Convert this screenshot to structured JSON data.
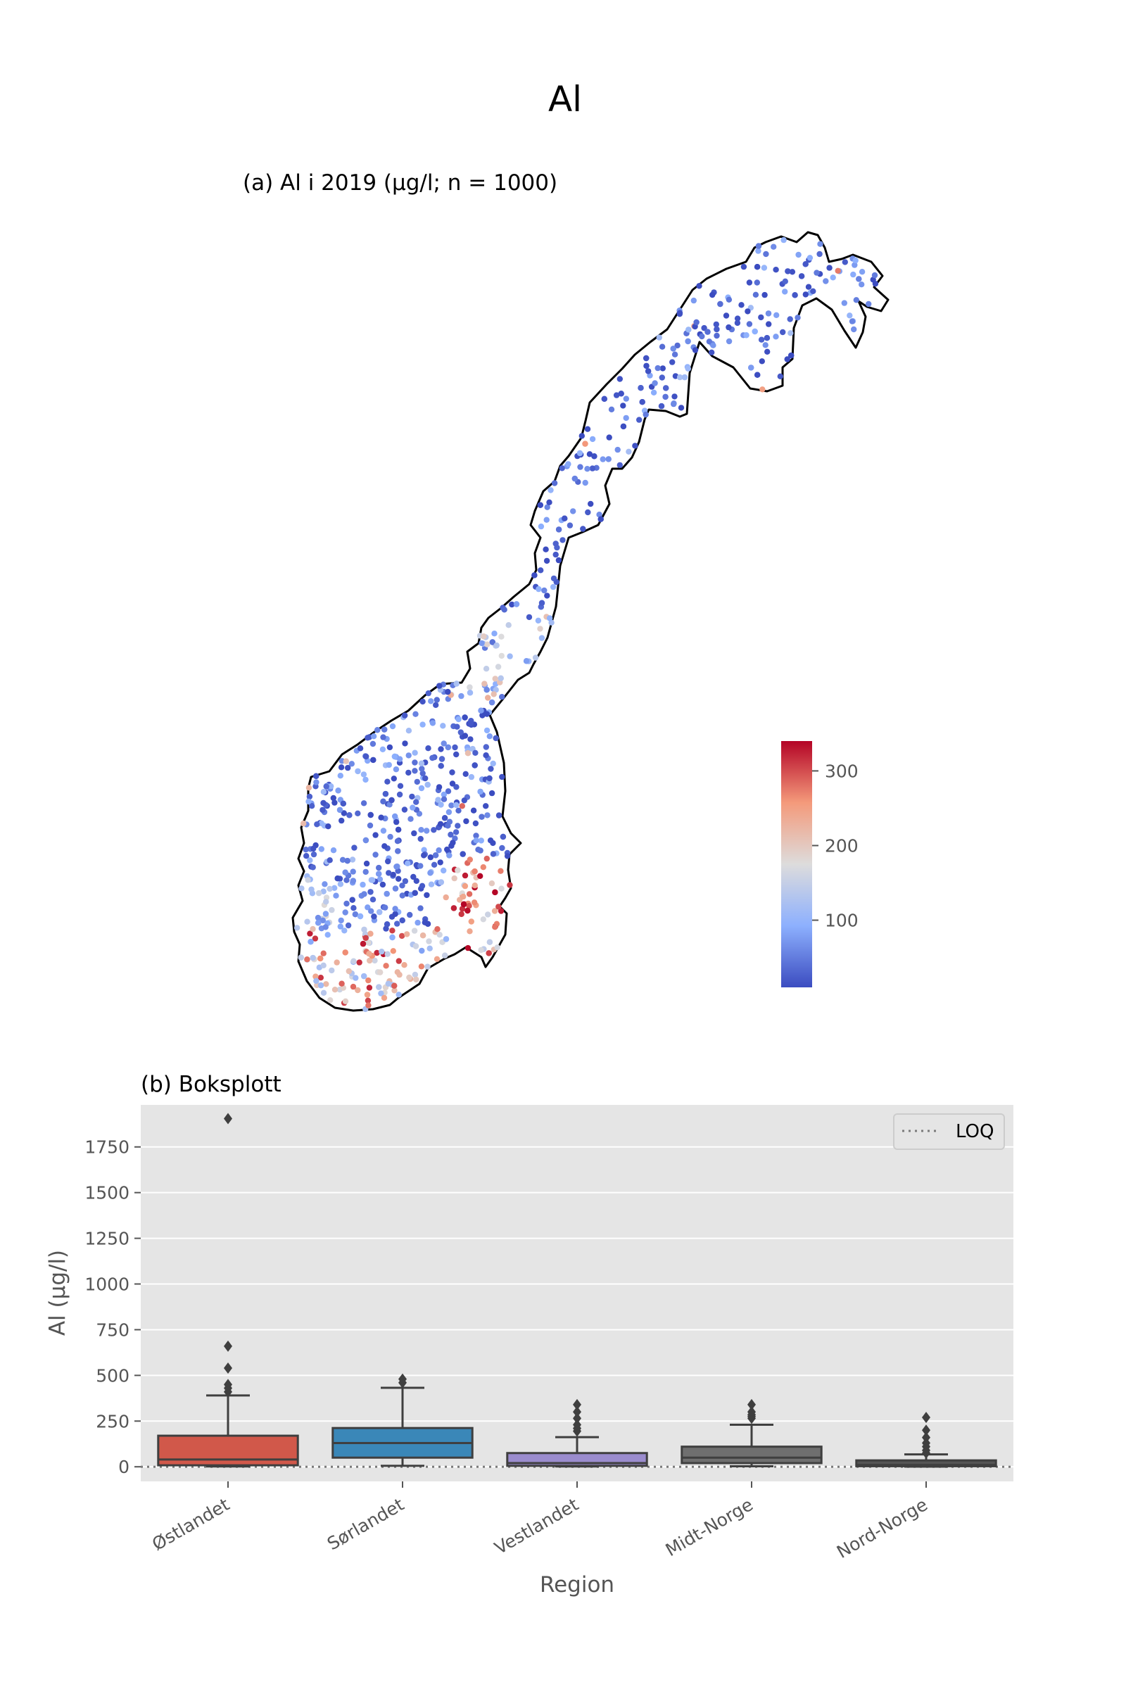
{
  "figure": {
    "title": "Al",
    "map_title": "(a) Al i 2019 (µg/l; n = 1000)",
    "box_title": "(b) Boksplott"
  },
  "colorbar": {
    "ticks": [
      100,
      200,
      300
    ],
    "range": [
      10,
      340
    ],
    "colormap": "coolwarm",
    "colors": [
      "#3b4cc0",
      "#8db0fe",
      "#dddcdc",
      "#f49a7b",
      "#b40426"
    ]
  },
  "chart_data": [
    {
      "type": "scatter",
      "subtype": "map",
      "region": "Norway",
      "title": "(a) Al i 2019 (µg/l; n = 1000)",
      "n": 1000,
      "unit": "µg/l",
      "color_range": [
        10,
        340
      ]
    },
    {
      "type": "box",
      "title": "(b) Boksplott",
      "xlabel": "Region",
      "ylabel": "Al (µg/l)",
      "ylim": [
        -80,
        1980
      ],
      "yticks": [
        0,
        250,
        500,
        750,
        1000,
        1250,
        1500,
        1750
      ],
      "categories": [
        "Østlandet",
        "Sørlandet",
        "Vestlandet",
        "Midt-Norge",
        "Nord-Norge"
      ],
      "boxes": [
        {
          "region": "Østlandet",
          "whisker_low": 2,
          "q1": 8,
          "median": 40,
          "q3": 170,
          "whisker_high": 390,
          "outliers": [
            410,
            430,
            450,
            540,
            660,
            1905
          ],
          "color": "#d1584a"
        },
        {
          "region": "Sørlandet",
          "whisker_low": 5,
          "q1": 50,
          "median": 130,
          "q3": 212,
          "whisker_high": 432,
          "outliers": [
            460,
            480
          ],
          "color": "#3a87b8"
        },
        {
          "region": "Vestlandet",
          "whisker_low": 2,
          "q1": 5,
          "median": 20,
          "q3": 75,
          "whisker_high": 162,
          "outliers": [
            195,
            210,
            230,
            265,
            300,
            340
          ],
          "color": "#9b8cce"
        },
        {
          "region": "Midt-Norge",
          "whisker_low": 3,
          "q1": 20,
          "median": 50,
          "q3": 110,
          "whisker_high": 230,
          "outliers": [
            265,
            275,
            285,
            300,
            340
          ],
          "color": "#6f6f6f"
        },
        {
          "region": "Nord-Norge",
          "whisker_low": 1,
          "q1": 3,
          "median": 10,
          "q3": 35,
          "whisker_high": 68,
          "outliers": [
            75,
            90,
            110,
            130,
            160,
            200,
            270
          ],
          "color": "#555555"
        }
      ],
      "loq": 0,
      "legend": {
        "label": "LOQ",
        "position": "upper right"
      },
      "grid": true
    }
  ]
}
